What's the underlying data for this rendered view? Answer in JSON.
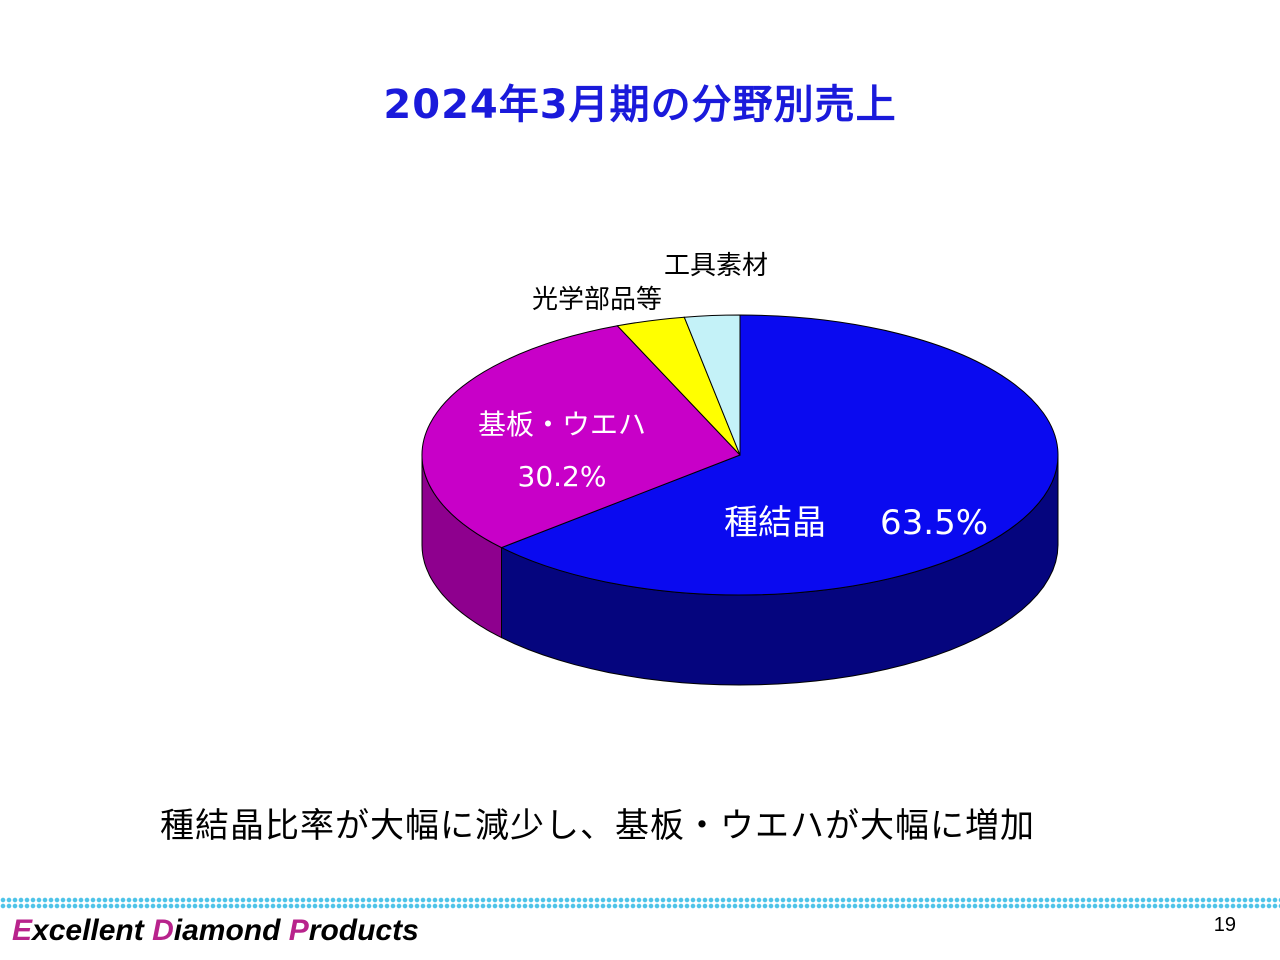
{
  "slide": {
    "title": "2024年3月期の分野別売上",
    "caption": "種結晶比率が大幅に減少し、基板・ウエハが大幅に増加",
    "page_number": "19"
  },
  "footer": {
    "brand_initials": [
      "E",
      "D",
      "P"
    ],
    "brand_rest": [
      "xcellent ",
      "iamond ",
      "roducts"
    ]
  },
  "chart_data": {
    "type": "pie",
    "title": "2024年3月期の分野別売上",
    "slices": [
      {
        "label": "種結晶",
        "value": 63.5,
        "value_label": "63.5%",
        "color": "#0a0af0",
        "side_color": "#05057e"
      },
      {
        "label": "基板・ウエハ",
        "value": 30.2,
        "value_label": "30.2%",
        "color": "#c800c8",
        "side_color": "#8e008e"
      },
      {
        "label": "光学部品等",
        "value": 3.5,
        "value_label": "",
        "color": "#ffff00",
        "side_color": "#a8a800"
      },
      {
        "label": "工具素材",
        "value": 2.8,
        "value_label": "",
        "color": "#c4f2f8",
        "side_color": "#7fb8c0"
      }
    ],
    "three_d": true,
    "legend": "none"
  }
}
